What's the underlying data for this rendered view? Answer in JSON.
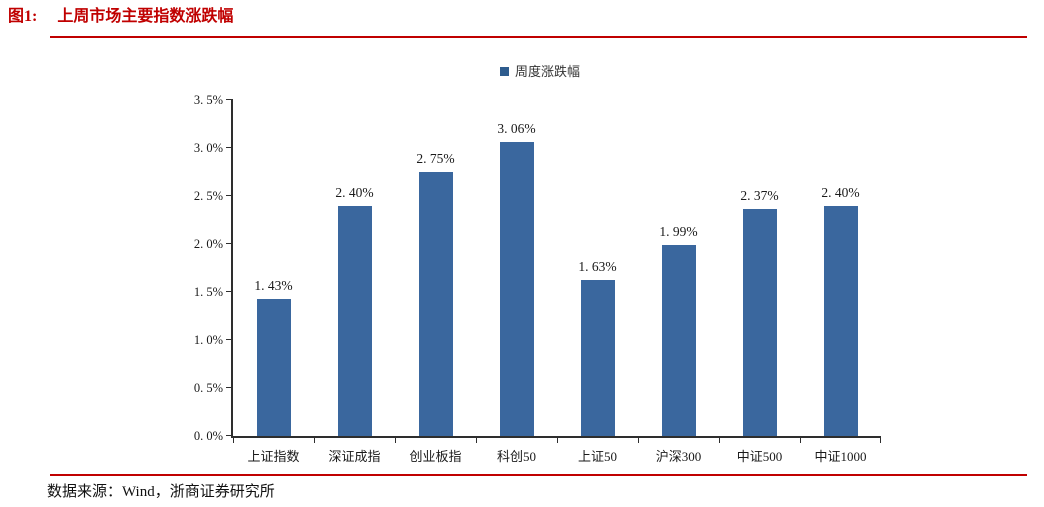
{
  "figure": {
    "label": "图1:",
    "title": "上周市场主要指数涨跌幅"
  },
  "legend": {
    "label": "周度涨跌幅",
    "marker_color": "#2e5c8e"
  },
  "source": {
    "text": "数据来源：Wind，浙商证券研究所"
  },
  "colors": {
    "accent_red": "#c00000",
    "bar": "#3a679e",
    "axis": "#2e2e2e",
    "text": "#1a1a1a"
  },
  "chart_data": {
    "type": "bar",
    "title": "上周市场主要指数涨跌幅",
    "series_name": "周度涨跌幅",
    "categories": [
      "上证指数",
      "深证成指",
      "创业板指",
      "科创50",
      "上证50",
      "沪深300",
      "中证500",
      "中证1000"
    ],
    "values": [
      1.43,
      2.4,
      2.75,
      3.06,
      1.63,
      1.99,
      2.37,
      2.4
    ],
    "value_labels": [
      "1. 43%",
      "2. 40%",
      "2. 75%",
      "3. 06%",
      "1. 63%",
      "1. 99%",
      "2. 37%",
      "2. 40%"
    ],
    "xlabel": "",
    "ylabel": "",
    "ylim": [
      0,
      3.5
    ],
    "ytick_step": 0.5,
    "ytick_labels": [
      "0. 0%",
      "0. 5%",
      "1. 0%",
      "1. 5%",
      "2. 0%",
      "2. 5%",
      "3. 0%",
      "3. 5%"
    ],
    "grid": false,
    "legend_position": "top-center"
  }
}
